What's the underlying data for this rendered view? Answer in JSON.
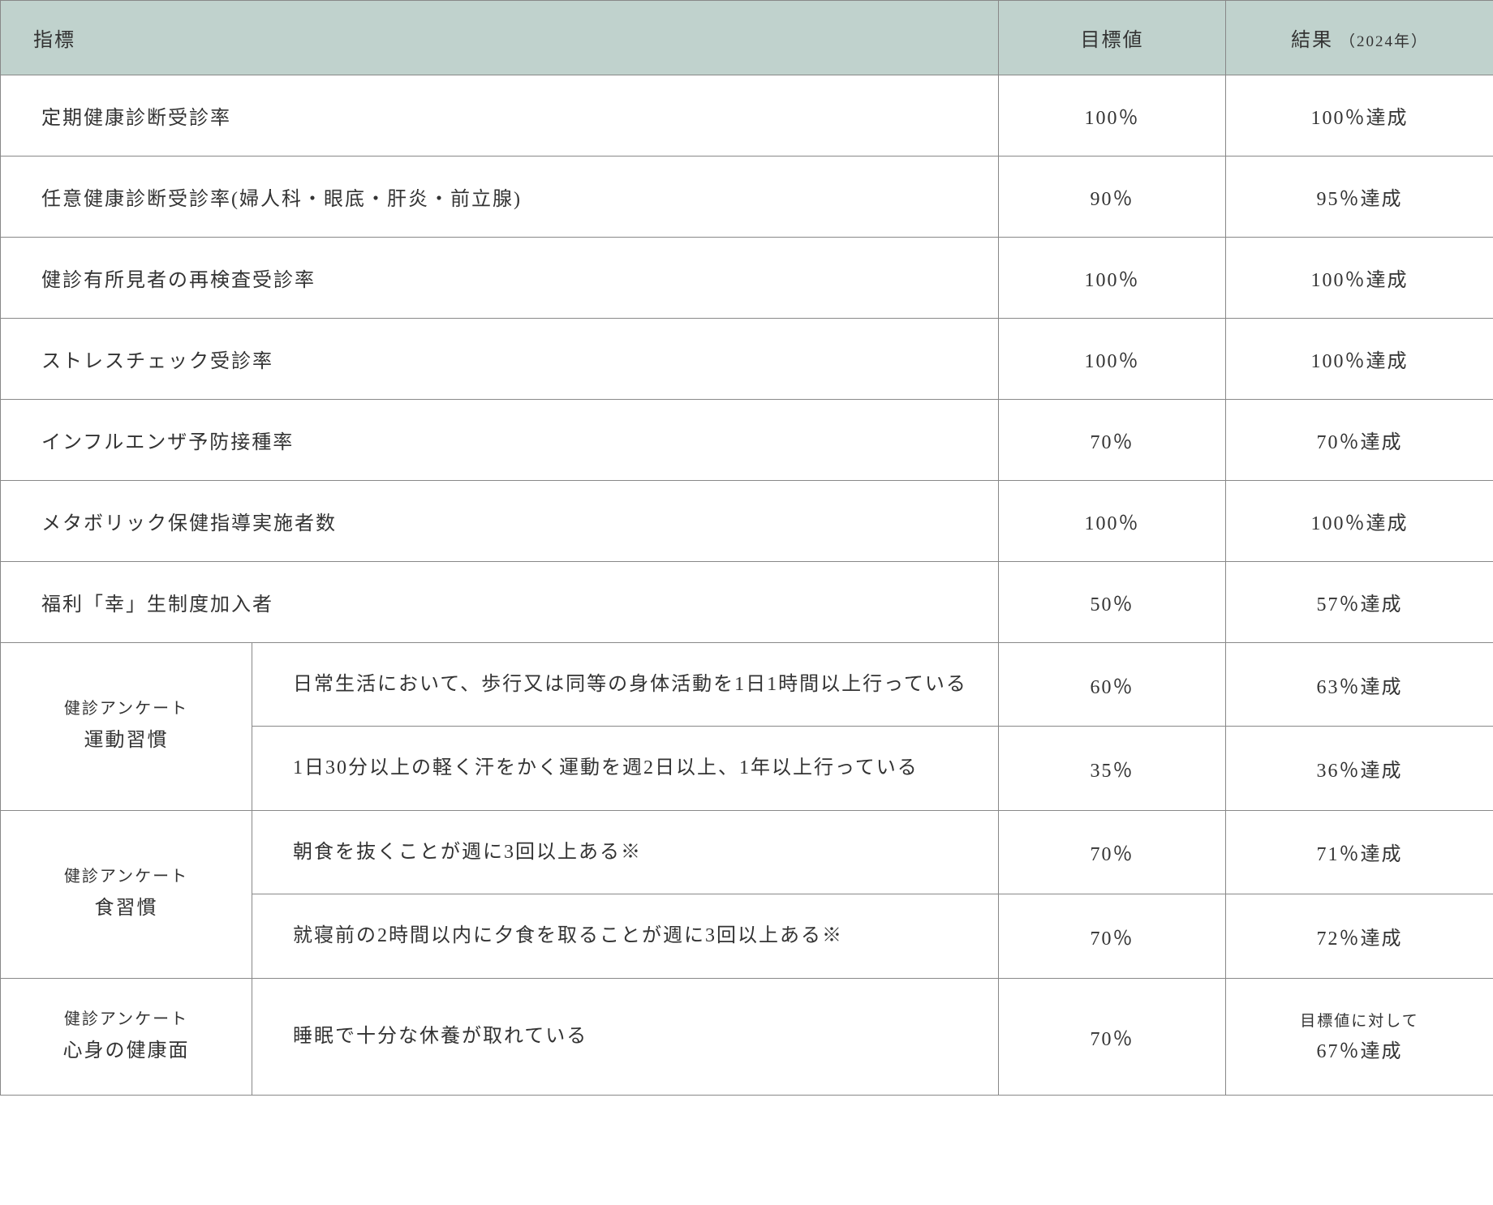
{
  "colors": {
    "header_bg": "#c0d2cd",
    "border": "#888888",
    "text": "#333333",
    "background": "#ffffff"
  },
  "typography": {
    "font_family": "Hiragino Mincho ProN, Yu Mincho, MS PMincho, serif",
    "header_fontsize": 24,
    "body_fontsize": 24,
    "small_fontsize": 20,
    "letter_spacing": 2
  },
  "table": {
    "columns": {
      "indicator": "指標",
      "target": "目標値",
      "result": "結果",
      "result_sub": "（2024年）"
    },
    "column_widths": {
      "indicator": 1230,
      "group": 310,
      "sub": 920,
      "target": 280,
      "result": 330
    },
    "rows": [
      {
        "indicator": "定期健康診断受診率",
        "target": "100％",
        "result": "100％達成"
      },
      {
        "indicator": "任意健康診断受診率(婦人科・眼底・肝炎・前立腺)",
        "target": "90％",
        "result": "95％達成"
      },
      {
        "indicator": "健診有所見者の再検査受診率",
        "target": "100％",
        "result": "100％達成"
      },
      {
        "indicator": "ストレスチェック受診率",
        "target": "100％",
        "result": "100％達成"
      },
      {
        "indicator": "インフルエンザ予防接種率",
        "target": "70％",
        "result": "70％達成"
      },
      {
        "indicator": "メタボリック保健指導実施者数",
        "target": "100％",
        "result": "100％達成"
      },
      {
        "indicator": "福利「幸」生制度加入者",
        "target": "50％",
        "result": "57％達成"
      }
    ],
    "groups": [
      {
        "label_small": "健診アンケート",
        "label_large": "運動習慣",
        "items": [
          {
            "indicator": "日常生活において、歩行又は同等の身体活動を1日1時間以上行っている",
            "target": "60％",
            "result": "63％達成"
          },
          {
            "indicator": "1日30分以上の軽く汗をかく運動を週2日以上、1年以上行っている",
            "target": "35％",
            "result": "36％達成"
          }
        ]
      },
      {
        "label_small": "健診アンケート",
        "label_large": "食習慣",
        "items": [
          {
            "indicator": "朝食を抜くことが週に3回以上ある※",
            "target": "70％",
            "result": "71％達成"
          },
          {
            "indicator": "就寝前の2時間以内に夕食を取ることが週に3回以上ある※",
            "target": "70％",
            "result": "72％達成"
          }
        ]
      },
      {
        "label_small": "健診アンケート",
        "label_large": "心身の健康面",
        "items": [
          {
            "indicator": "睡眠で十分な休養が取れている",
            "target": "70％",
            "result_small": "目標値に対して",
            "result": "67％達成"
          }
        ]
      }
    ]
  }
}
